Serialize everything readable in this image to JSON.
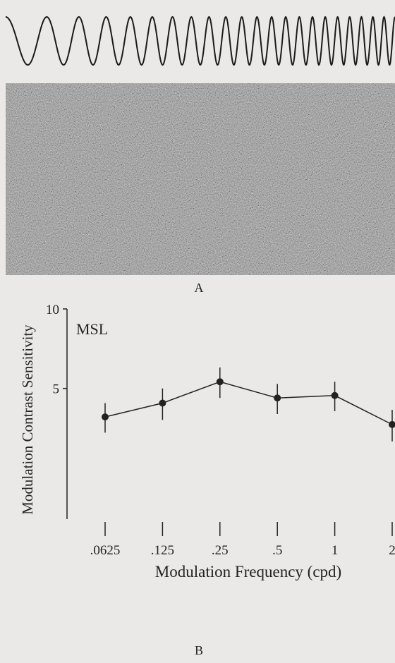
{
  "chart_data": {
    "type": "line",
    "panel_labels": [
      "A",
      "B"
    ],
    "annotation": "MSL",
    "y_label": "Modulation Contrast Sensitivity",
    "x_label": "Modulation Frequency (cpd)",
    "categories": [
      ".0625",
      ".125",
      ".25",
      ".5",
      "1",
      "2"
    ],
    "series": [
      {
        "name": "MSL",
        "color": "#222222",
        "values": [
          3.9,
          4.4,
          5.3,
          4.6,
          4.7,
          3.65
        ],
        "errors": [
          0.5,
          0.6,
          0.7,
          0.6,
          0.6,
          0.5
        ]
      }
    ],
    "ylim": [
      1.6,
      10
    ],
    "yticks": [
      5,
      10
    ],
    "log_scale": true
  }
}
